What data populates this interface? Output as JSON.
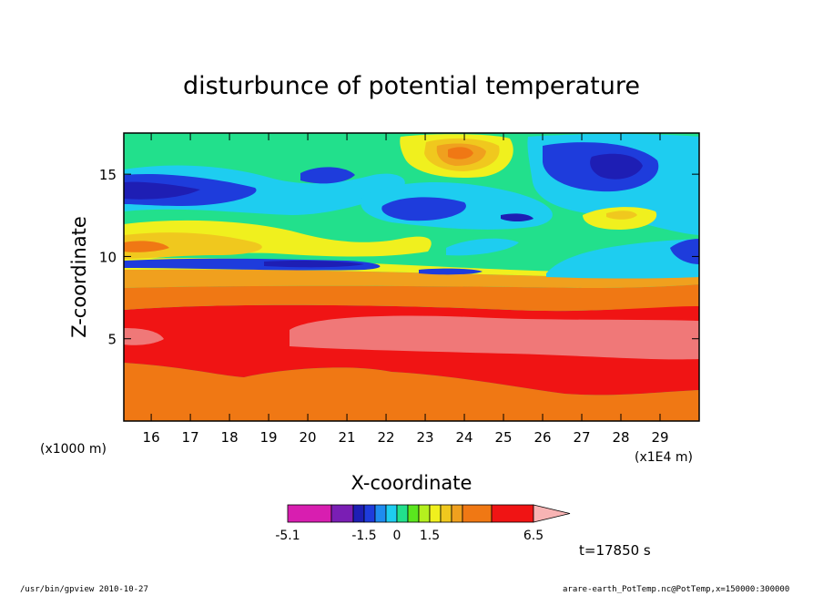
{
  "chart_data": {
    "type": "heatmap",
    "title": "disturbunce of potential temperature",
    "xlabel": "X-coordinate",
    "ylabel": "Z-coordinate",
    "x_unit_left": "(x1000 m)",
    "x_unit_right": "(x1E4 m)",
    "x_ticks": [
      "16",
      "17",
      "18",
      "19",
      "20",
      "21",
      "22",
      "23",
      "24",
      "25",
      "26",
      "27",
      "28",
      "29"
    ],
    "y_ticks": [
      "15",
      "10",
      "5"
    ],
    "xlim": [
      15.3,
      30
    ],
    "ylim": [
      0,
      17.5
    ],
    "colorbar": {
      "labels": [
        "-5.1",
        "-1.5",
        "0",
        "1.5",
        "6.5"
      ],
      "colors": [
        "#d81eb0",
        "#7a1eb4",
        "#1e1eb4",
        "#1e3cdc",
        "#1e8cf0",
        "#1ecdf0",
        "#22e08c",
        "#5ae61e",
        "#b4f01e",
        "#f0f01e",
        "#f0c81e",
        "#f0a01e",
        "#f07814",
        "#f01414",
        "#f07878",
        "#f8b4b4"
      ]
    },
    "bands": [
      {
        "z_bottom": 0,
        "z_top": 3.5,
        "class": "1.5 to 3",
        "color": "#f07814"
      },
      {
        "z_bottom": 3.5,
        "z_top": 7.5,
        "class": "3 to 5",
        "color": "#f01414"
      },
      {
        "z_bottom": 4.5,
        "z_top": 6.5,
        "class": "above 5",
        "color": "#f07878"
      },
      {
        "z_bottom": 7.5,
        "z_top": 9.0,
        "class": "1.5 to 3",
        "color": "#f07814"
      },
      {
        "z_bottom": 9.0,
        "z_top": 10.2,
        "class": "0 to 1.5",
        "color": "#f0c81e"
      },
      {
        "z_bottom": 10.2,
        "z_top": 17.5,
        "class": "-1.5 to 1.5",
        "color": "#22e08c"
      }
    ],
    "extremes": [
      {
        "x": 23.7,
        "z": 16.5,
        "sign": "positive",
        "color": "#f07814"
      },
      {
        "x": 27.8,
        "z": 15.5,
        "sign": "negative",
        "color": "#1e1eb4"
      },
      {
        "x": 15.8,
        "z": 14.2,
        "sign": "negative",
        "color": "#1e3cdc"
      },
      {
        "x": 20.5,
        "z": 9.8,
        "sign": "negative",
        "color": "#1e1eb4"
      }
    ]
  },
  "time_label": "t=17850 s",
  "footer": {
    "left": "/usr/bin/gpview   2010-10-27",
    "right": "arare-earth_PotTemp.nc@PotTemp,x=150000:300000"
  }
}
